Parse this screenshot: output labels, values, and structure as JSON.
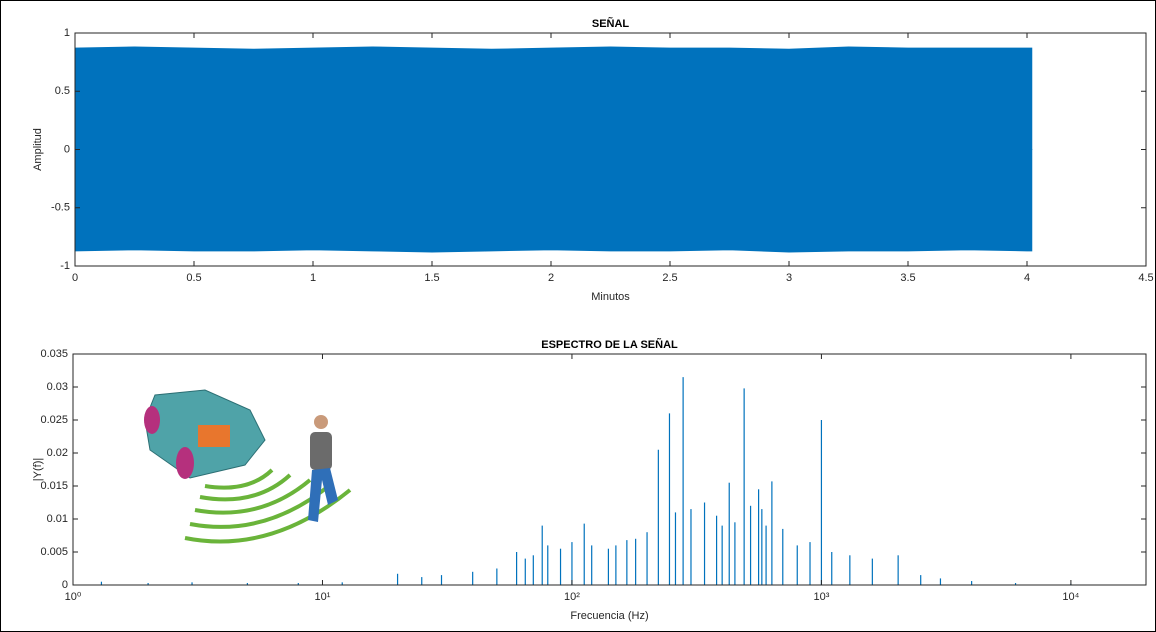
{
  "chart_data": [
    {
      "type": "area",
      "title": "SEÑAL",
      "x_label": "Minutos",
      "y_label": "Amplitud",
      "x": [
        0,
        0.25,
        0.5,
        0.75,
        1,
        1.25,
        1.5,
        1.75,
        2,
        2.25,
        2.5,
        2.75,
        3,
        3.25,
        3.5,
        3.75,
        4,
        4.02
      ],
      "series": [
        {
          "color": "#0072bd",
          "values": [
            0.87,
            0.88,
            0.87,
            0.86,
            0.87,
            0.88,
            0.87,
            0.86,
            0.87,
            0.88,
            0.87,
            0.87,
            0.86,
            0.88,
            0.87,
            0.87,
            0.87,
            0.87
          ]
        },
        {
          "color": "#0072bd",
          "values": [
            -0.87,
            -0.86,
            -0.87,
            -0.87,
            -0.86,
            -0.87,
            -0.88,
            -0.87,
            -0.86,
            -0.87,
            -0.87,
            -0.86,
            -0.88,
            -0.87,
            -0.87,
            -0.86,
            -0.87,
            -0.87
          ]
        }
      ],
      "xlim": [
        0,
        4.5
      ],
      "xticks": [
        0,
        0.5,
        1,
        1.5,
        2,
        2.5,
        3,
        3.5,
        4,
        4.5
      ],
      "ylim": [
        -1,
        1
      ],
      "yticks": [
        -1,
        -0.5,
        0,
        0.5,
        1
      ]
    },
    {
      "type": "stem",
      "title": "ESPECTRO DE LA SEÑAL",
      "x_label": "Frecuencia (Hz)",
      "y_label": "|Y(f)|",
      "x_scale": "log",
      "color": "#0072bd",
      "x": [
        1.3,
        2,
        3,
        5,
        8,
        12,
        20,
        25,
        30,
        40,
        50,
        60,
        65,
        70,
        76,
        80,
        90,
        100,
        112,
        120,
        140,
        150,
        166,
        180,
        200,
        222,
        246,
        260,
        279,
        300,
        340,
        380,
        400,
        427,
        450,
        490,
        520,
        560,
        577,
        600,
        633,
        700,
        800,
        900,
        1000,
        1100,
        1300,
        1600,
        2030,
        2500,
        3000,
        4000,
        6000,
        10000
      ],
      "values": [
        0.0005,
        0.0003,
        0.0004,
        0.0003,
        0.0003,
        0.0004,
        0.0017,
        0.0012,
        0.0015,
        0.002,
        0.0025,
        0.005,
        0.004,
        0.0045,
        0.009,
        0.006,
        0.0055,
        0.0065,
        0.0093,
        0.006,
        0.0055,
        0.006,
        0.0068,
        0.007,
        0.008,
        0.0205,
        0.026,
        0.011,
        0.0315,
        0.0115,
        0.0125,
        0.0105,
        0.009,
        0.0155,
        0.0095,
        0.0298,
        0.012,
        0.0145,
        0.0115,
        0.009,
        0.0157,
        0.0085,
        0.006,
        0.0065,
        0.025,
        0.005,
        0.0045,
        0.004,
        0.0045,
        0.0015,
        0.001,
        0.0006,
        0.0003,
        0.0002
      ],
      "xlim": [
        1,
        20000
      ],
      "xticks": [
        {
          "value": 1,
          "label": "10⁰"
        },
        {
          "value": 10,
          "label": "10¹"
        },
        {
          "value": 100,
          "label": "10²"
        },
        {
          "value": 1000,
          "label": "10³"
        },
        {
          "value": 10000,
          "label": "10⁴"
        }
      ],
      "ylim": [
        0,
        0.035
      ],
      "yticks": [
        0,
        0.005,
        0.01,
        0.015,
        0.02,
        0.025,
        0.03,
        0.035
      ]
    }
  ]
}
